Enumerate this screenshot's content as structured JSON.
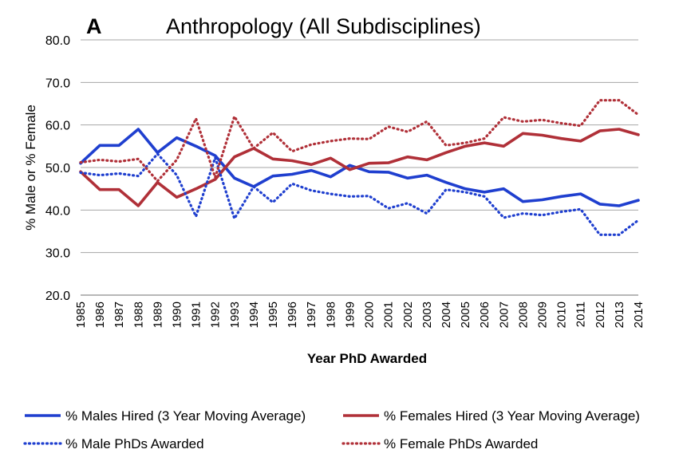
{
  "chart_data": {
    "type": "line",
    "panel_label": "A",
    "title": "Anthropology (All Subdisciplines)",
    "xlabel": "Year PhD Awarded",
    "ylabel": "% Male or % Female",
    "ylim": [
      20,
      80
    ],
    "yticks": [
      "20.0",
      "30.0",
      "40.0",
      "50.0",
      "60.0",
      "70.0",
      "80.0"
    ],
    "grid": true,
    "legend_position": "bottom",
    "x": [
      "1985",
      "1986",
      "1987",
      "1988",
      "1989",
      "1990",
      "1991",
      "1992",
      "1993",
      "1994",
      "1995",
      "1996",
      "1997",
      "1998",
      "1999",
      "2000",
      "2001",
      "2002",
      "2003",
      "2004",
      "2005",
      "2006",
      "2007",
      "2008",
      "2009",
      "2010",
      "2011",
      "2012",
      "2013",
      "2014"
    ],
    "series": [
      {
        "name": "% Males Hired  (3 Year Moving Average)",
        "color": "#1f3fcf",
        "style": "solid",
        "values": [
          51.0,
          55.2,
          55.2,
          59.0,
          53.5,
          57.0,
          55.0,
          52.8,
          47.5,
          45.5,
          48.0,
          48.4,
          49.3,
          47.8,
          50.5,
          49.0,
          48.9,
          47.5,
          48.2,
          46.5,
          45.0,
          44.2,
          45.0,
          42.0,
          42.4,
          43.2,
          43.8,
          41.4,
          41.0,
          42.3
        ]
      },
      {
        "name": "% Females Hired  (3 Year Moving Average)",
        "color": "#b03038",
        "style": "solid",
        "values": [
          49.0,
          44.8,
          44.8,
          41.0,
          46.5,
          43.0,
          45.0,
          47.2,
          52.5,
          54.5,
          52.0,
          51.6,
          50.7,
          52.2,
          49.5,
          51.0,
          51.1,
          52.5,
          51.8,
          53.5,
          55.0,
          55.8,
          55.0,
          58.0,
          57.6,
          56.8,
          56.2,
          58.6,
          59.0,
          57.7
        ]
      },
      {
        "name": "% Male PhDs Awarded",
        "color": "#1f3fcf",
        "style": "dotted",
        "values": [
          48.8,
          48.2,
          48.6,
          48.0,
          53.2,
          48.2,
          38.5,
          52.3,
          38.0,
          45.5,
          41.8,
          46.2,
          44.6,
          43.8,
          43.2,
          43.3,
          40.4,
          41.6,
          39.2,
          44.8,
          44.2,
          43.2,
          38.2,
          39.2,
          38.8,
          39.6,
          40.2,
          34.2,
          34.2,
          37.6
        ]
      },
      {
        "name": "% Female PhDs Awarded",
        "color": "#b03038",
        "style": "dotted",
        "values": [
          51.2,
          51.8,
          51.4,
          52.0,
          46.8,
          51.8,
          61.5,
          47.7,
          62.0,
          54.5,
          58.2,
          53.8,
          55.4,
          56.2,
          56.8,
          56.7,
          59.6,
          58.4,
          60.8,
          55.2,
          55.8,
          56.8,
          61.8,
          60.8,
          61.2,
          60.4,
          59.8,
          65.8,
          65.8,
          62.4
        ]
      }
    ]
  }
}
